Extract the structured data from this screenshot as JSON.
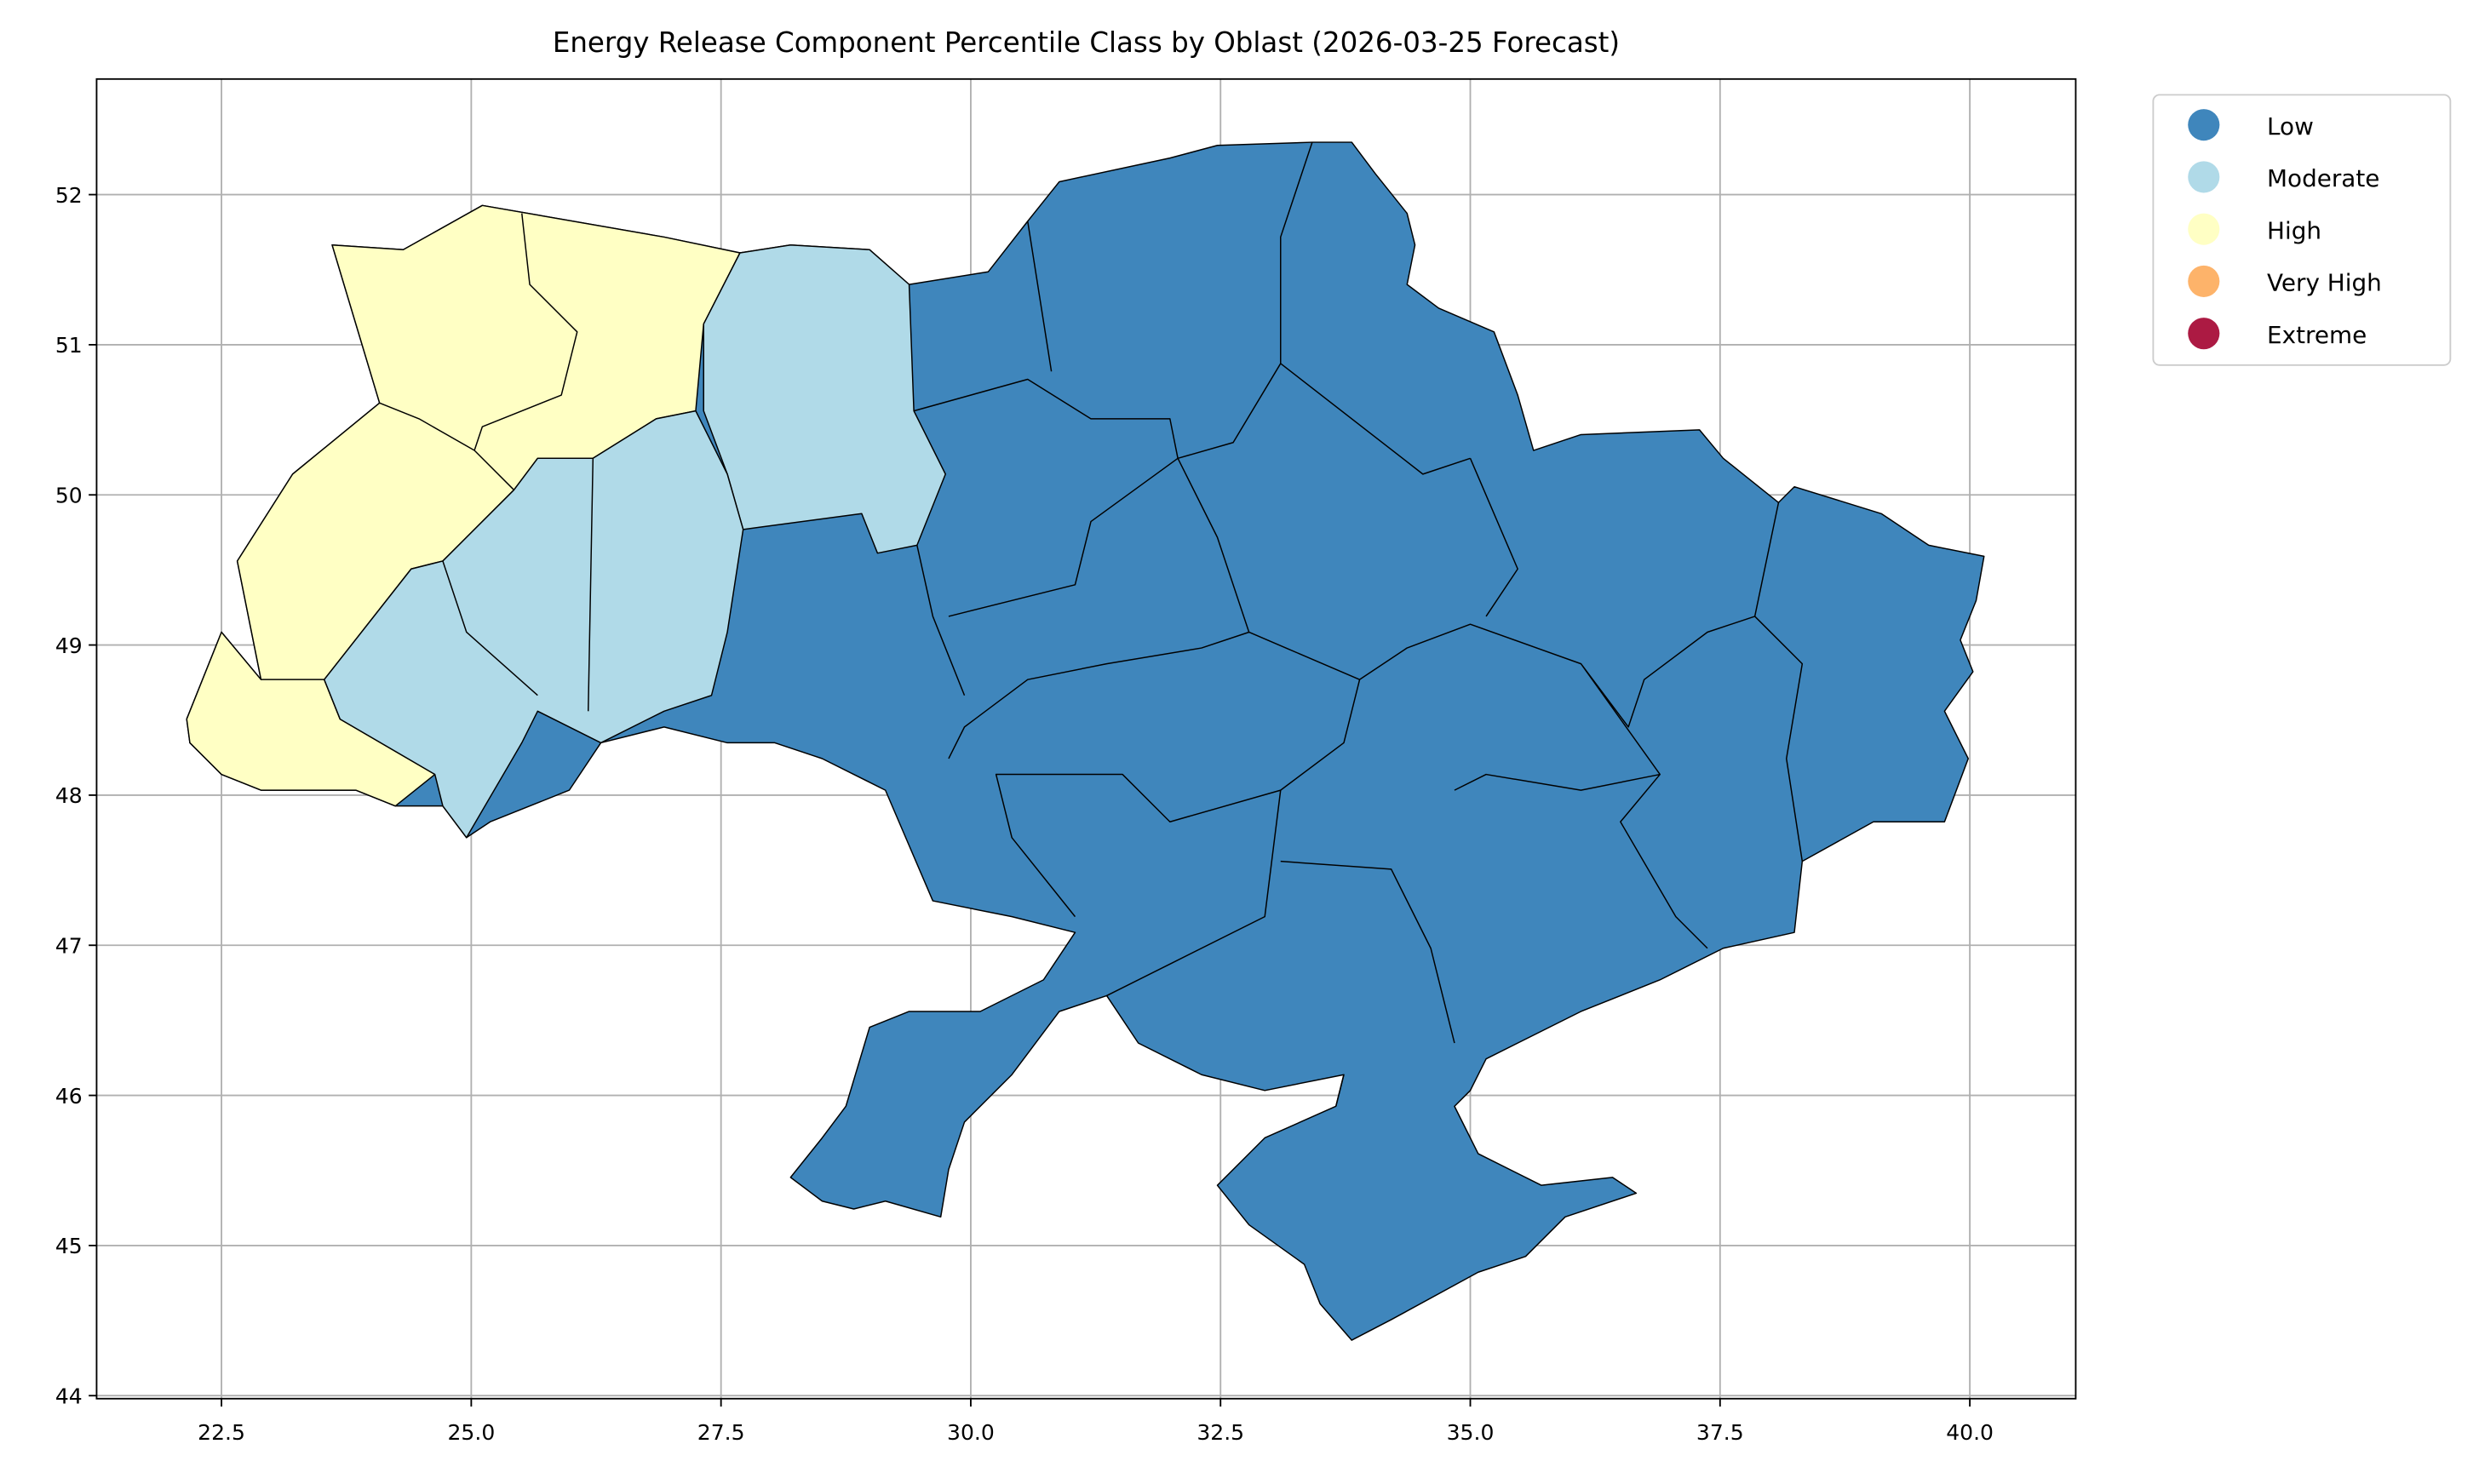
{
  "chart_data": {
    "type": "choropleth",
    "title": "Energy Release Component Percentile Class by Oblast (2026-03-25 Forecast)",
    "series": [
      {
        "name": "Low",
        "color": "#3f86bc"
      },
      {
        "name": "Moderate",
        "color": "#b0dae8"
      },
      {
        "name": "High",
        "color": "#ffffc4"
      },
      {
        "name": "Very High",
        "color": "#fdb36a"
      },
      {
        "name": "Extreme",
        "color": "#ac1a43"
      }
    ],
    "xlim": [
      21.25,
      41.06
    ],
    "ylim": [
      43.98,
      52.77
    ],
    "xticks": [
      22.5,
      {
        "value": 25,
        "label": "25.0"
      },
      27.5,
      {
        "value": 30,
        "label": "30.0"
      },
      32.5,
      {
        "value": 35,
        "label": "35.0"
      },
      37.5,
      {
        "value": 40,
        "label": "40.0"
      }
    ],
    "yticks": [
      44,
      45,
      46,
      47,
      48,
      49,
      50,
      51,
      52
    ],
    "grid": true,
    "legend": "outside-upper-right"
  }
}
